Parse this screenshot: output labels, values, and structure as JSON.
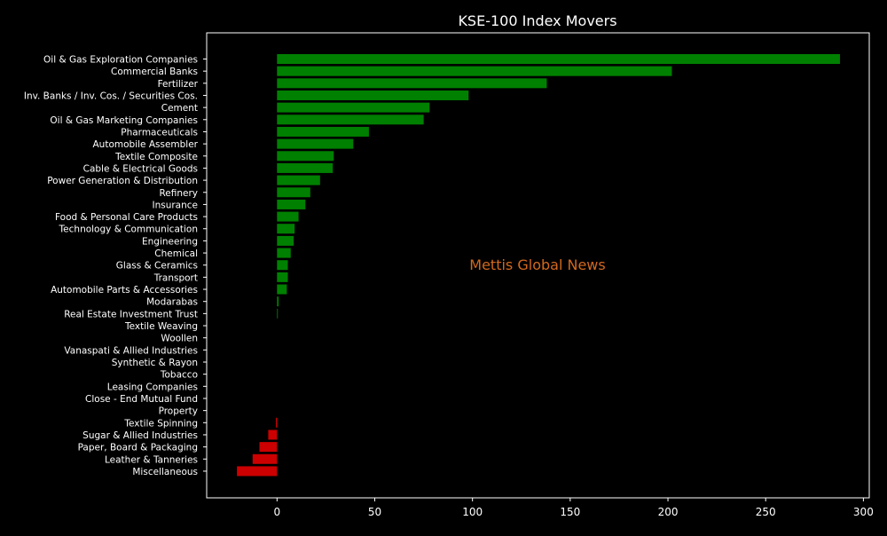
{
  "chart_data": {
    "type": "bar",
    "orientation": "horizontal",
    "title": "KSE-100 Index Movers",
    "watermark": "Mettis Global News",
    "xlabel": "",
    "ylabel": "",
    "xlim": [
      -36,
      303
    ],
    "xticks": [
      0,
      50,
      100,
      150,
      200,
      250,
      300
    ],
    "grid": false,
    "legend": "none",
    "colors": {
      "positive": "#008000",
      "negative": "#cc0000",
      "background": "#000000",
      "text": "#ffffff",
      "watermark": "#d2691e"
    },
    "categories": [
      "Oil & Gas Exploration Companies",
      "Commercial Banks",
      "Fertilizer",
      "Inv. Banks / Inv. Cos. / Securities Cos.",
      "Cement",
      "Oil & Gas Marketing Companies",
      "Pharmaceuticals",
      "Automobile Assembler",
      "Textile Composite",
      "Cable & Electrical Goods",
      "Power Generation & Distribution",
      "Refinery",
      "Insurance",
      "Food & Personal Care Products",
      "Technology & Communication",
      "Engineering",
      "Chemical",
      "Glass & Ceramics",
      "Transport",
      "Automobile Parts & Accessories",
      "Modarabas",
      "Real Estate Investment Trust",
      "Textile Weaving",
      "Woollen",
      "Vanaspati & Allied Industries",
      "Synthetic & Rayon",
      "Tobacco",
      "Leasing Companies",
      "Close - End Mutual Fund",
      "Property",
      "Textile Spinning",
      "Sugar & Allied Industries",
      "Paper, Board & Packaging",
      "Leather & Tanneries",
      "Miscellaneous"
    ],
    "values": [
      288,
      202,
      138,
      98,
      78,
      75,
      47,
      39,
      29,
      28.5,
      22,
      17,
      14.5,
      11,
      9,
      8.5,
      7,
      5.5,
      5.5,
      5,
      0.8,
      0.4,
      0,
      0,
      0,
      0,
      0,
      0,
      0,
      0,
      -0.6,
      -4.5,
      -9,
      -12.5,
      -20.5
    ]
  }
}
